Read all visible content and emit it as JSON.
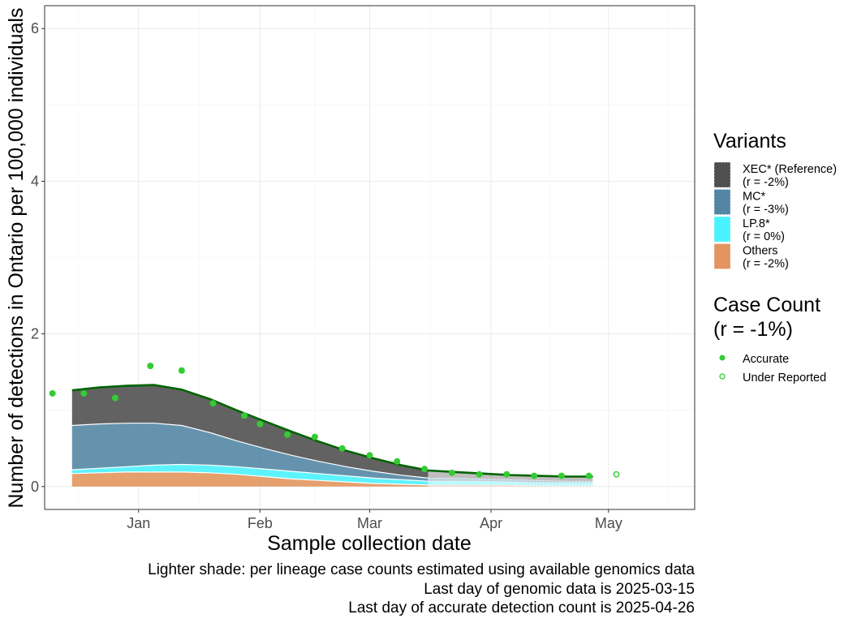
{
  "chart_data": {
    "type": "area",
    "title": "",
    "xlabel": "Sample collection date",
    "ylabel": "Number of detections in Ontario per 100,000 individuals",
    "x_range": [
      "2024-12-08",
      "2025-05-23"
    ],
    "ylim": [
      -0.3,
      6.3
    ],
    "x_ticks": [
      {
        "date": "2025-01-01",
        "label": "Jan"
      },
      {
        "date": "2025-02-01",
        "label": "Feb"
      },
      {
        "date": "2025-03-01",
        "label": "Mar"
      },
      {
        "date": "2025-04-01",
        "label": "Apr"
      },
      {
        "date": "2025-05-01",
        "label": "May"
      }
    ],
    "y_ticks": [
      0,
      2,
      4,
      6
    ],
    "grid": true,
    "genomic_last_date": "2025-03-15",
    "x": [
      "2024-12-15",
      "2024-12-22",
      "2024-12-29",
      "2025-01-05",
      "2025-01-12",
      "2025-01-19",
      "2025-01-26",
      "2025-02-02",
      "2025-02-09",
      "2025-02-16",
      "2025-02-23",
      "2025-03-02",
      "2025-03-09",
      "2025-03-16",
      "2025-03-23",
      "2025-03-30",
      "2025-04-06",
      "2025-04-13",
      "2025-04-20",
      "2025-04-27"
    ],
    "series": [
      {
        "name": "Others",
        "legend_r": "(r = -2%)",
        "color": "#e08f55",
        "values": [
          0.17,
          0.18,
          0.19,
          0.19,
          0.19,
          0.18,
          0.16,
          0.13,
          0.1,
          0.08,
          0.06,
          0.04,
          0.03,
          0.02,
          0.02,
          0.02,
          0.02,
          0.01,
          0.01,
          0.01
        ]
      },
      {
        "name": "LP.8*",
        "legend_r": "(r = 0%)",
        "color": "#3ff1ff",
        "values": [
          0.05,
          0.06,
          0.07,
          0.09,
          0.1,
          0.1,
          0.1,
          0.1,
          0.1,
          0.09,
          0.08,
          0.07,
          0.06,
          0.05,
          0.05,
          0.05,
          0.04,
          0.04,
          0.04,
          0.04
        ]
      },
      {
        "name": "MC*",
        "legend_r": "(r = -3%)",
        "color": "#4a80a0",
        "values": [
          0.58,
          0.58,
          0.57,
          0.55,
          0.51,
          0.43,
          0.34,
          0.27,
          0.21,
          0.16,
          0.12,
          0.09,
          0.06,
          0.04,
          0.04,
          0.03,
          0.03,
          0.03,
          0.02,
          0.02
        ]
      },
      {
        "name": "XEC* (Reference)",
        "legend_r": "(r = -2%)",
        "color": "#474747",
        "values": [
          0.46,
          0.48,
          0.49,
          0.5,
          0.47,
          0.44,
          0.4,
          0.36,
          0.31,
          0.26,
          0.21,
          0.17,
          0.13,
          0.1,
          0.08,
          0.07,
          0.06,
          0.06,
          0.06,
          0.06
        ]
      }
    ],
    "total_line": {
      "color": "#006400",
      "values": [
        1.26,
        1.3,
        1.32,
        1.33,
        1.27,
        1.15,
        1.0,
        0.86,
        0.72,
        0.59,
        0.47,
        0.37,
        0.28,
        0.21,
        0.19,
        0.17,
        0.15,
        0.14,
        0.13,
        0.13
      ]
    },
    "case_counts": {
      "legend_title": "Case Count",
      "legend_subtitle": "(r = -1%)",
      "color": "#33cc33",
      "accurate_label": "Accurate",
      "under_reported_label": "Under Reported",
      "accurate": [
        {
          "date": "2024-12-10",
          "y": 1.22
        },
        {
          "date": "2024-12-18",
          "y": 1.22
        },
        {
          "date": "2024-12-26",
          "y": 1.16
        },
        {
          "date": "2025-01-04",
          "y": 1.58
        },
        {
          "date": "2025-01-12",
          "y": 1.52
        },
        {
          "date": "2025-01-20",
          "y": 1.09
        },
        {
          "date": "2025-01-28",
          "y": 0.93
        },
        {
          "date": "2025-02-01",
          "y": 0.82
        },
        {
          "date": "2025-02-08",
          "y": 0.68
        },
        {
          "date": "2025-02-15",
          "y": 0.65
        },
        {
          "date": "2025-02-22",
          "y": 0.5
        },
        {
          "date": "2025-03-01",
          "y": 0.41
        },
        {
          "date": "2025-03-08",
          "y": 0.33
        },
        {
          "date": "2025-03-15",
          "y": 0.23
        },
        {
          "date": "2025-03-22",
          "y": 0.18
        },
        {
          "date": "2025-03-29",
          "y": 0.16
        },
        {
          "date": "2025-04-05",
          "y": 0.16
        },
        {
          "date": "2025-04-12",
          "y": 0.14
        },
        {
          "date": "2025-04-19",
          "y": 0.14
        },
        {
          "date": "2025-04-26",
          "y": 0.14
        }
      ],
      "under_reported": [
        {
          "date": "2025-05-03",
          "y": 0.16
        }
      ]
    }
  },
  "legend": {
    "variants_title": "Variants"
  },
  "caption": {
    "line1": "Lighter shade: per lineage case counts estimated using available genomics data",
    "line2": "Last day of genomic data is 2025-03-15",
    "line3": "Last day of accurate detection count is 2025-04-26"
  }
}
